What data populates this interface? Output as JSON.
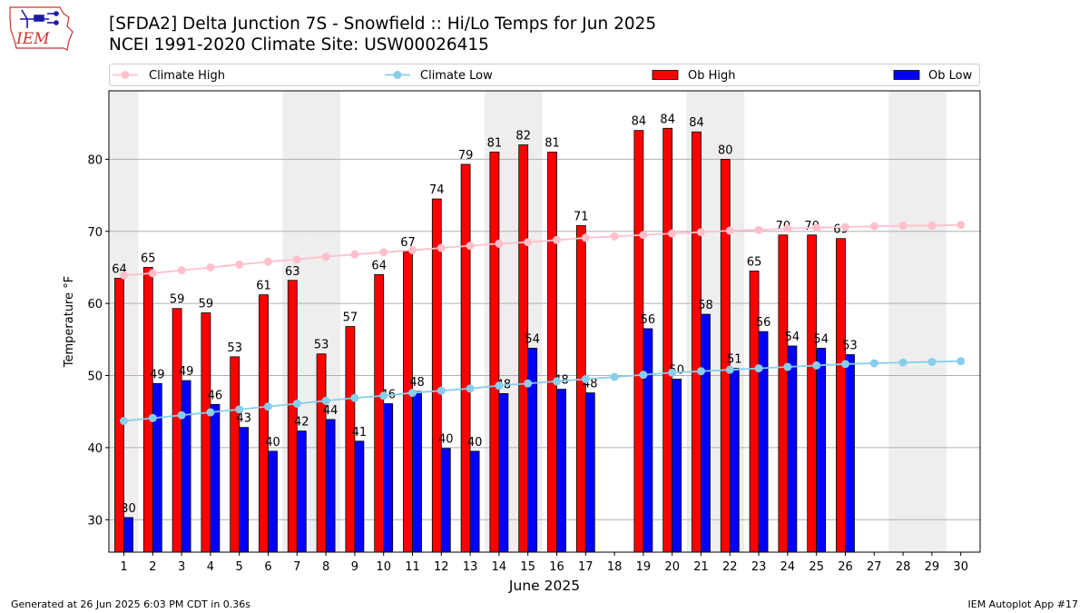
{
  "header": {
    "title_line1": "[SFDA2] Delta Junction 7S - Snowfield :: Hi/Lo Temps for Jun 2025",
    "title_line2": "NCEI 1991-2020 Climate Site: USW00026415",
    "logo_text": "IEM"
  },
  "footer": {
    "generated": "Generated at 26 Jun 2025 6:03 PM CDT in 0.36s",
    "app": "IEM Autoplot App #17"
  },
  "colors": {
    "ob_high": "#ff0000",
    "ob_low": "#0000ff",
    "climate_high": "#ffc0cb",
    "climate_low": "#87ceeb",
    "weekend_shade": "#eeeeee",
    "grid": "#b0b0b0"
  },
  "chart_data": {
    "type": "bar",
    "title": "[SFDA2] Delta Junction 7S - Snowfield :: Hi/Lo Temps for Jun 2025",
    "xlabel": "June 2025",
    "ylabel": "Temperature °F",
    "ylim": [
      25.5,
      89.5
    ],
    "yticks": [
      30,
      40,
      50,
      60,
      70,
      80
    ],
    "categories": [
      "1",
      "2",
      "3",
      "4",
      "5",
      "6",
      "7",
      "8",
      "9",
      "10",
      "11",
      "12",
      "13",
      "14",
      "15",
      "16",
      "17",
      "18",
      "19",
      "20",
      "21",
      "22",
      "23",
      "24",
      "25",
      "26",
      "27",
      "28",
      "29",
      "30"
    ],
    "legend": {
      "placement": "top",
      "entries": [
        "Climate High",
        "Climate Low",
        "Ob High",
        "Ob Low"
      ]
    },
    "weekend_days": [
      1,
      7,
      8,
      14,
      15,
      21,
      22,
      28,
      29
    ],
    "series": [
      {
        "name": "Ob High",
        "kind": "bar",
        "values": [
          63.5,
          65,
          59.3,
          58.7,
          52.6,
          61.2,
          63.2,
          53,
          56.8,
          64,
          67.2,
          74.5,
          79.3,
          81,
          82,
          81,
          70.8,
          null,
          84,
          84.3,
          83.8,
          80,
          64.5,
          69.5,
          69.5,
          69,
          null,
          null,
          null,
          null
        ],
        "labels": [
          "64",
          "65",
          "59",
          "59",
          "53",
          "61",
          "63",
          "53",
          "57",
          "64",
          "67",
          "74",
          "79",
          "81",
          "82",
          "81",
          "71",
          "",
          "84",
          "84",
          "84",
          "80",
          "65",
          "70",
          "70",
          "69",
          "",
          "",
          "",
          ""
        ]
      },
      {
        "name": "Ob Low",
        "kind": "bar",
        "values": [
          30.3,
          48.9,
          49.3,
          46,
          42.8,
          39.5,
          42.3,
          43.9,
          40.9,
          46.1,
          47.8,
          39.9,
          39.5,
          47.5,
          53.8,
          48.1,
          47.6,
          null,
          56.5,
          49.5,
          58.5,
          51,
          56.1,
          54.1,
          53.8,
          52.9,
          null,
          null,
          null,
          null
        ],
        "labels": [
          "30",
          "49",
          "49",
          "46",
          "43",
          "40",
          "42",
          "44",
          "41",
          "46",
          "48",
          "40",
          "40",
          "48",
          "54",
          "48",
          "48",
          "",
          "56",
          "50",
          "58",
          "51",
          "56",
          "54",
          "54",
          "53",
          "",
          "",
          "",
          ""
        ]
      },
      {
        "name": "Climate High",
        "kind": "line",
        "values": [
          63.9,
          64.2,
          64.6,
          65.0,
          65.4,
          65.8,
          66.1,
          66.5,
          66.8,
          67.1,
          67.4,
          67.7,
          68.0,
          68.3,
          68.5,
          68.8,
          69.1,
          69.3,
          69.5,
          69.7,
          69.9,
          70.1,
          70.2,
          70.4,
          70.5,
          70.6,
          70.7,
          70.8,
          70.8,
          70.9
        ]
      },
      {
        "name": "Climate Low",
        "kind": "line",
        "values": [
          43.7,
          44.1,
          44.5,
          44.9,
          45.3,
          45.7,
          46.1,
          46.5,
          46.9,
          47.2,
          47.6,
          47.9,
          48.2,
          48.6,
          48.9,
          49.2,
          49.5,
          49.8,
          50.1,
          50.4,
          50.6,
          50.8,
          51.0,
          51.2,
          51.4,
          51.6,
          51.7,
          51.8,
          51.9,
          52.0
        ]
      }
    ]
  }
}
